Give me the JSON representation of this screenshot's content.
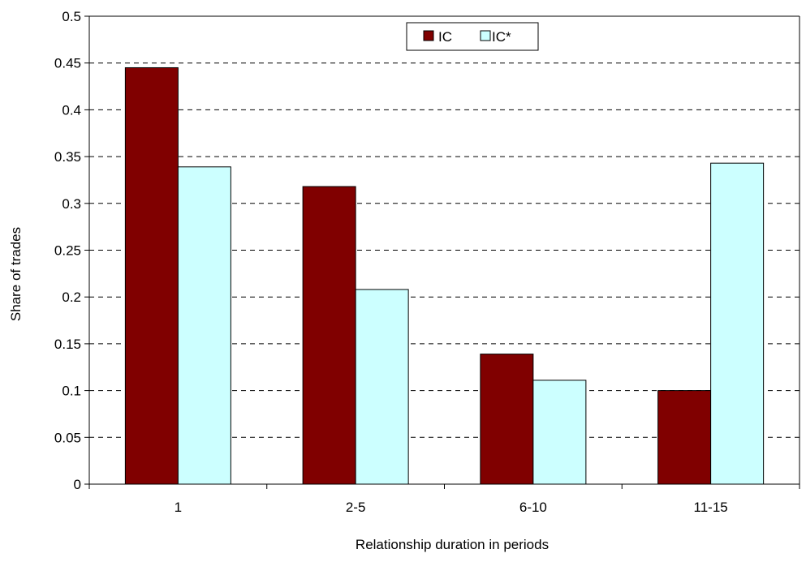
{
  "chart_data": {
    "type": "bar",
    "title": "",
    "xlabel": "Relationship duration in periods",
    "ylabel": "Share of trades",
    "categories": [
      "1",
      "2-5",
      "6-10",
      "11-15"
    ],
    "series": [
      {
        "name": "IC",
        "color": "#800000",
        "values": [
          0.445,
          0.318,
          0.139,
          0.1
        ]
      },
      {
        "name": "IC*",
        "color": "#ccffff",
        "values": [
          0.339,
          0.208,
          0.111,
          0.343
        ]
      }
    ],
    "ylim": [
      0,
      0.5
    ],
    "yticks": [
      "0",
      "0.05",
      "0.1",
      "0.15",
      "0.2",
      "0.25",
      "0.3",
      "0.35",
      "0.4",
      "0.45",
      "0.5"
    ],
    "grid": true,
    "legend_position": "top-center"
  }
}
